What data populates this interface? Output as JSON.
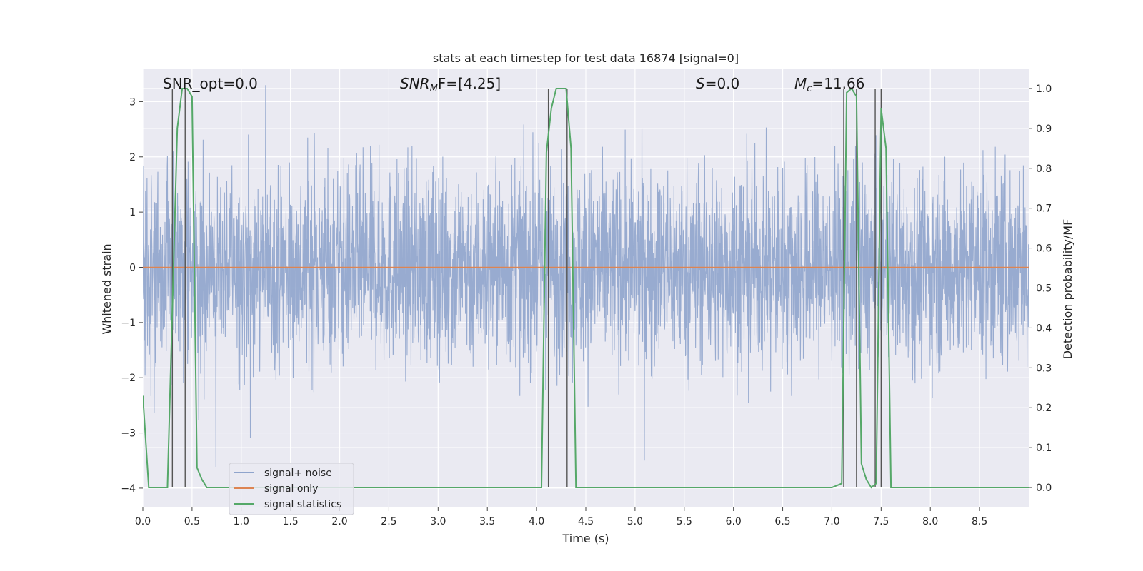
{
  "chart_data": {
    "type": "line",
    "title": "stats at each timestep for test data 16874 [signal=0]",
    "xlabel": "Time (s)",
    "ylabel": "Whitened strain",
    "y2label": "Detection probability/MF",
    "xlim": [
      0.0,
      9.0
    ],
    "ylim": [
      -4.35,
      3.6
    ],
    "y2lim": [
      -0.05,
      1.05
    ],
    "xticks": [
      "0.0",
      "0.5",
      "1.0",
      "1.5",
      "2.0",
      "2.5",
      "3.0",
      "3.5",
      "4.0",
      "4.5",
      "5.0",
      "5.5",
      "6.0",
      "6.5",
      "7.0",
      "7.5",
      "8.0",
      "8.5"
    ],
    "yticks": [
      "3",
      "2",
      "1",
      "0",
      "−1",
      "−2",
      "−3",
      "−4"
    ],
    "y2ticks": [
      "1.0",
      "0.9",
      "0.8",
      "0.7",
      "0.6",
      "0.5",
      "0.4",
      "0.3",
      "0.2",
      "0.1",
      "0.0"
    ],
    "grid": true,
    "legend_position": "lower-left",
    "annotations": {
      "snr_opt": "SNR_opt=0.0",
      "snr_mf_main": "SNR",
      "snr_mf_sub": "M",
      "snr_mf_rest": "F=[4.25]",
      "s_main": "S",
      "s_rest": "=0.0",
      "mc_main": "M",
      "mc_sub": "c",
      "mc_rest": "=11.66"
    },
    "series": [
      {
        "name": "signal+ noise",
        "color": "#8fa4cc",
        "note": "dense noise band",
        "envelope": {
          "typical_low": -1.9,
          "typical_high": 1.8,
          "extreme_low": -3.7,
          "extreme_high": 3.3
        }
      },
      {
        "name": "signal only",
        "color": "#dd8452",
        "x": [
          0.0,
          9.0
        ],
        "y": [
          0.0,
          0.0
        ]
      },
      {
        "name": "signal statistics",
        "color": "#55a868",
        "axis": "right",
        "x": [
          0.0,
          0.06,
          0.25,
          0.35,
          0.4,
          0.45,
          0.5,
          0.55,
          0.6,
          0.65,
          0.7,
          1.0,
          2.0,
          3.0,
          3.8,
          4.05,
          4.1,
          4.15,
          4.2,
          4.3,
          4.35,
          4.4,
          4.5,
          5.0,
          6.0,
          7.0,
          7.1,
          7.15,
          7.2,
          7.25,
          7.3,
          7.35,
          7.4,
          7.45,
          7.5,
          7.55,
          7.6,
          7.65,
          8.0,
          9.0
        ],
        "y": [
          0.23,
          0.0,
          0.0,
          0.9,
          1.0,
          1.0,
          0.98,
          0.05,
          0.02,
          0.0,
          0.0,
          0.0,
          0.0,
          0.0,
          0.0,
          0.0,
          0.84,
          0.95,
          1.0,
          1.0,
          0.85,
          0.0,
          0.0,
          0.0,
          0.0,
          0.0,
          0.01,
          0.99,
          1.0,
          0.98,
          0.06,
          0.02,
          0.0,
          0.01,
          0.95,
          0.85,
          0.0,
          0.0,
          0.0,
          0.0
        ]
      }
    ],
    "vertical_markers_x": [
      0.3,
      0.43,
      4.12,
      4.31,
      7.12,
      7.25,
      7.44,
      7.5
    ],
    "vertical_markers_top": 1.0
  }
}
